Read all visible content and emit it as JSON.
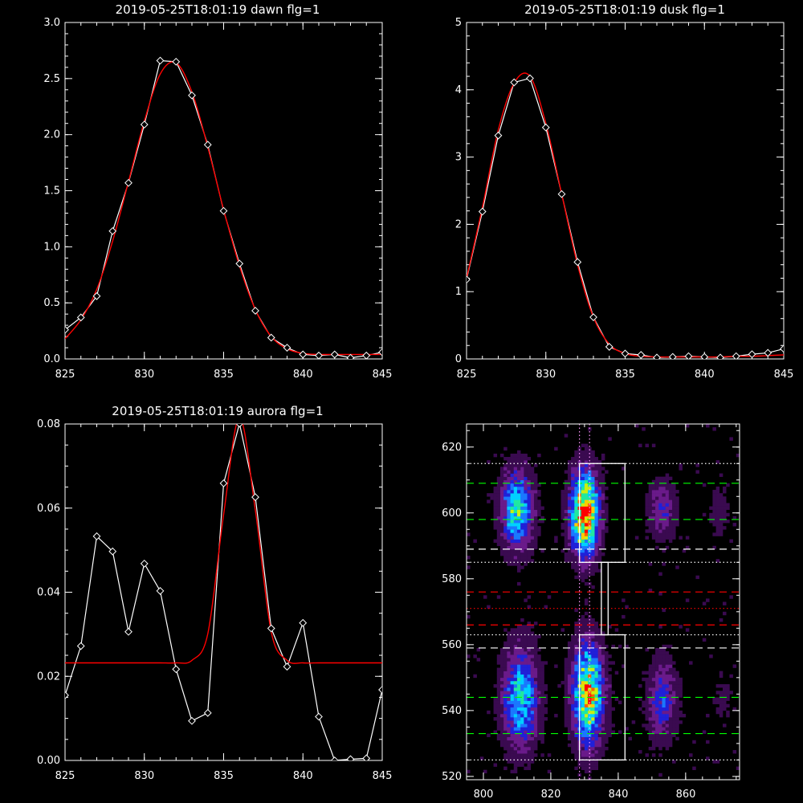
{
  "chart_data": [
    {
      "type": "line",
      "title": "2019-05-25T18:01:19 dawn flg=1",
      "xlim": [
        825,
        845
      ],
      "ylim": [
        0,
        3.0
      ],
      "xticks": [
        825,
        830,
        835,
        840,
        845
      ],
      "xtick_labels": [
        "825",
        "830",
        "835",
        "840",
        "845"
      ],
      "yticks": [
        0,
        0.5,
        1.0,
        1.5,
        2.0,
        2.5,
        3.0
      ],
      "ytick_labels": [
        "0.0",
        "0.5",
        "1.0",
        "1.5",
        "2.0",
        "2.5",
        "3.0"
      ],
      "series": [
        {
          "color": "#ffffff",
          "markers": "diamond",
          "x": [
            825,
            826,
            827,
            828,
            829,
            830,
            831,
            832,
            833,
            834,
            835,
            836,
            837,
            838,
            839,
            840,
            841,
            842,
            843,
            844,
            845
          ],
          "y": [
            0.26,
            0.37,
            0.56,
            1.14,
            1.57,
            2.09,
            2.66,
            2.65,
            2.35,
            1.91,
            1.32,
            0.85,
            0.43,
            0.19,
            0.1,
            0.04,
            0.03,
            0.04,
            0.01,
            0.03,
            0.06
          ]
        },
        {
          "color": "#ff0000",
          "x": [
            825,
            826,
            827,
            828,
            829,
            830,
            831,
            832,
            833,
            834,
            835,
            836,
            837,
            838,
            839,
            840,
            841,
            842,
            843,
            844,
            845
          ],
          "y": [
            0.18,
            0.35,
            0.62,
            1.05,
            1.58,
            2.12,
            2.54,
            2.64,
            2.38,
            1.89,
            1.33,
            0.83,
            0.44,
            0.2,
            0.09,
            0.05,
            0.04,
            0.04,
            0.04,
            0.04,
            0.04
          ]
        }
      ]
    },
    {
      "type": "line",
      "title": "2019-05-25T18:01:19 dusk flg=1",
      "xlim": [
        825,
        845
      ],
      "ylim": [
        0,
        5
      ],
      "xticks": [
        825,
        830,
        835,
        840,
        845
      ],
      "xtick_labels": [
        "825",
        "830",
        "835",
        "840",
        "845"
      ],
      "yticks": [
        0,
        1,
        2,
        3,
        4,
        5
      ],
      "ytick_labels": [
        "0",
        "1",
        "2",
        "3",
        "4",
        "5"
      ],
      "series": [
        {
          "color": "#ffffff",
          "markers": "diamond",
          "x": [
            825,
            826,
            827,
            828,
            829,
            830,
            831,
            832,
            833,
            834,
            835,
            836,
            837,
            838,
            839,
            840,
            841,
            842,
            843,
            844,
            845
          ],
          "y": [
            1.18,
            2.19,
            3.32,
            4.11,
            4.17,
            3.44,
            2.45,
            1.44,
            0.62,
            0.18,
            0.08,
            0.06,
            0.02,
            0.03,
            0.04,
            0.03,
            0.02,
            0.04,
            0.07,
            0.09,
            0.15
          ]
        },
        {
          "color": "#ff0000",
          "x": [
            825,
            826,
            827,
            828,
            829,
            830,
            831,
            832,
            833,
            834,
            835,
            836,
            837,
            838,
            839,
            840,
            841,
            842,
            843,
            844,
            845
          ],
          "y": [
            1.2,
            2.25,
            3.4,
            4.1,
            4.2,
            3.5,
            2.45,
            1.4,
            0.62,
            0.22,
            0.08,
            0.04,
            0.03,
            0.03,
            0.03,
            0.03,
            0.03,
            0.04,
            0.04,
            0.05,
            0.06
          ]
        }
      ]
    },
    {
      "type": "line",
      "title": "2019-05-25T18:01:19 aurora flg=1",
      "xlim": [
        825,
        845
      ],
      "ylim": [
        0,
        0.08
      ],
      "xticks": [
        825,
        830,
        835,
        840,
        845
      ],
      "xtick_labels": [
        "825",
        "830",
        "835",
        "840",
        "845"
      ],
      "yticks": [
        0,
        0.02,
        0.04,
        0.06,
        0.08
      ],
      "ytick_labels": [
        "0.00",
        "0.02",
        "0.04",
        "0.06",
        "0.08"
      ],
      "series": [
        {
          "color": "#ffffff",
          "markers": "diamond",
          "x": [
            825,
            826,
            827,
            828,
            829,
            830,
            831,
            832,
            833,
            834,
            835,
            836,
            837,
            838,
            839,
            840,
            841,
            842,
            843,
            844,
            845
          ],
          "y": [
            0.0155,
            0.0272,
            0.0533,
            0.0497,
            0.0306,
            0.0468,
            0.0403,
            0.0217,
            0.0094,
            0.0113,
            0.0659,
            0.0801,
            0.0626,
            0.0314,
            0.0223,
            0.0327,
            0.0104,
            0.0,
            0.0003,
            0.0005,
            0.0168
          ]
        },
        {
          "color": "#ff0000",
          "baseline": 0.0232,
          "x": [
            825,
            826,
            827,
            828,
            829,
            830,
            831,
            832,
            833,
            834,
            835,
            836,
            837,
            838,
            839,
            840,
            841,
            842,
            843,
            844,
            845
          ],
          "y": [
            0.0232,
            0.0232,
            0.0232,
            0.0232,
            0.0232,
            0.0232,
            0.0232,
            0.0232,
            0.0238,
            0.0301,
            0.0585,
            0.0815,
            0.0595,
            0.0306,
            0.0238,
            0.0232,
            0.0232,
            0.0232,
            0.0232,
            0.0232,
            0.0232
          ]
        }
      ]
    },
    {
      "type": "heatmap",
      "xlim": [
        795,
        876
      ],
      "ylim": [
        519,
        627
      ],
      "xticks": [
        800,
        820,
        840,
        860
      ],
      "xtick_labels": [
        "800",
        "820",
        "840",
        "860"
      ],
      "yticks": [
        520,
        540,
        560,
        580,
        600,
        620
      ],
      "ytick_labels": [
        "520",
        "540",
        "560",
        "580",
        "600",
        "620"
      ],
      "colormap": [
        "#000000",
        "#3a0a50",
        "#6a1a8a",
        "#2020d8",
        "#1a78ff",
        "#00d0ff",
        "#20e8a0",
        "#ccee10",
        "#ffcc00",
        "#ff6000",
        "#ff0000"
      ],
      "blobs": [
        {
          "x": 810,
          "y": 601,
          "sx": 3.2,
          "sy": 8,
          "amp": 0.55
        },
        {
          "x": 830,
          "y": 600,
          "sx": 2.8,
          "sy": 8.5,
          "amp": 0.95
        },
        {
          "x": 853,
          "y": 601,
          "sx": 2.8,
          "sy": 6,
          "amp": 0.25
        },
        {
          "x": 870,
          "y": 600,
          "sx": 2,
          "sy": 6,
          "amp": 0.1
        },
        {
          "x": 811,
          "y": 544,
          "sx": 3.5,
          "sy": 10,
          "amp": 0.52
        },
        {
          "x": 831,
          "y": 545,
          "sx": 3,
          "sy": 10,
          "amp": 0.82
        },
        {
          "x": 853,
          "y": 543,
          "sx": 3,
          "sy": 8,
          "amp": 0.3
        },
        {
          "x": 871,
          "y": 544,
          "sx": 2,
          "sy": 6,
          "amp": 0.08
        }
      ],
      "hlines": [
        {
          "y": 615,
          "color": "#ffffff",
          "dash": "dotted"
        },
        {
          "y": 609,
          "color": "#00ff00",
          "dash": "dashed"
        },
        {
          "y": 598,
          "color": "#00ff00",
          "dash": "dashed"
        },
        {
          "y": 589,
          "color": "#ffffff",
          "dash": "dashed"
        },
        {
          "y": 585,
          "color": "#ffffff",
          "dash": "dotted"
        },
        {
          "y": 576,
          "color": "#ff0000",
          "dash": "dashed"
        },
        {
          "y": 571,
          "color": "#ff0000",
          "dash": "dotted"
        },
        {
          "y": 566,
          "color": "#ff0000",
          "dash": "dashed"
        },
        {
          "y": 563,
          "color": "#ffffff",
          "dash": "dotted"
        },
        {
          "y": 559,
          "color": "#ffffff",
          "dash": "dashed"
        },
        {
          "y": 544,
          "color": "#00ff00",
          "dash": "dashed"
        },
        {
          "y": 533,
          "color": "#00ff00",
          "dash": "dashed"
        },
        {
          "y": 525,
          "color": "#ffffff",
          "dash": "dotted"
        }
      ],
      "vlines": [
        {
          "x": 828.5,
          "color": "#ff99ff",
          "dash": "dotted"
        },
        {
          "x": 831.5,
          "color": "#ff99ff",
          "dash": "dotted"
        }
      ],
      "boxes": [
        {
          "x0": 828.5,
          "x1": 842,
          "y0": 585,
          "y1": 615
        },
        {
          "x0": 828.5,
          "x1": 842,
          "y0": 525,
          "y1": 563
        },
        {
          "x0": 835,
          "x1": 837,
          "y0": 563,
          "y1": 585
        }
      ]
    }
  ]
}
